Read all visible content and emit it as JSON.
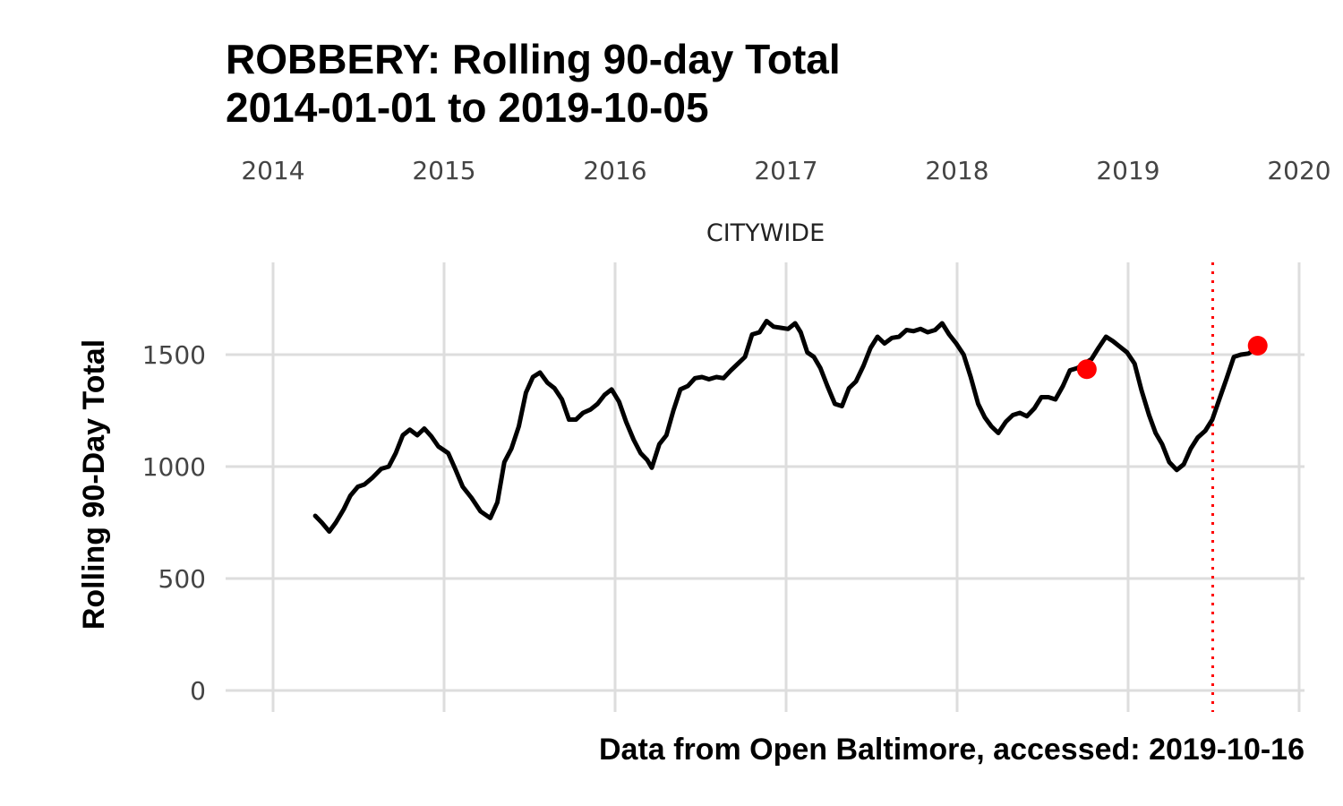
{
  "chart_data": {
    "type": "line",
    "title_line1": "ROBBERY: Rolling 90-day Total",
    "title_line2": "2014-01-01 to 2019-10-05",
    "panel_label": "CITYWIDE",
    "xlabel": "",
    "ylabel": "Rolling 90-Day Total",
    "caption": "Data from Open Baltimore, accessed: 2019-10-16",
    "x_ticks": [
      "2014",
      "2015",
      "2016",
      "2017",
      "2018",
      "2019",
      "2020"
    ],
    "y_ticks": [
      "0",
      "500",
      "1000",
      "1500"
    ],
    "xlim": [
      "2014-01-01",
      "2020-01-01"
    ],
    "ylim": [
      0,
      1900
    ],
    "grid": true,
    "series": [
      {
        "color": "#000000",
        "points": [
          [
            "2014-04-01",
            780
          ],
          [
            "2014-04-15",
            750
          ],
          [
            "2014-05-01",
            710
          ],
          [
            "2014-05-15",
            750
          ],
          [
            "2014-06-01",
            810
          ],
          [
            "2014-06-15",
            870
          ],
          [
            "2014-07-01",
            910
          ],
          [
            "2014-07-15",
            920
          ],
          [
            "2014-08-01",
            950
          ],
          [
            "2014-08-20",
            990
          ],
          [
            "2014-09-05",
            1000
          ],
          [
            "2014-09-20",
            1060
          ],
          [
            "2014-10-05",
            1140
          ],
          [
            "2014-10-20",
            1165
          ],
          [
            "2014-11-05",
            1140
          ],
          [
            "2014-11-20",
            1170
          ],
          [
            "2014-12-05",
            1135
          ],
          [
            "2014-12-20",
            1090
          ],
          [
            "2015-01-10",
            1060
          ],
          [
            "2015-01-25",
            990
          ],
          [
            "2015-02-10",
            910
          ],
          [
            "2015-03-01",
            860
          ],
          [
            "2015-03-20",
            800
          ],
          [
            "2015-04-10",
            770
          ],
          [
            "2015-04-25",
            840
          ],
          [
            "2015-05-10",
            1020
          ],
          [
            "2015-05-25",
            1080
          ],
          [
            "2015-06-10",
            1180
          ],
          [
            "2015-06-25",
            1330
          ],
          [
            "2015-07-10",
            1400
          ],
          [
            "2015-07-25",
            1420
          ],
          [
            "2015-08-10",
            1375
          ],
          [
            "2015-08-25",
            1350
          ],
          [
            "2015-09-10",
            1300
          ],
          [
            "2015-09-25",
            1210
          ],
          [
            "2015-10-10",
            1210
          ],
          [
            "2015-10-25",
            1240
          ],
          [
            "2015-11-10",
            1255
          ],
          [
            "2015-11-25",
            1280
          ],
          [
            "2015-12-10",
            1320
          ],
          [
            "2015-12-25",
            1345
          ],
          [
            "2016-01-10",
            1290
          ],
          [
            "2016-01-25",
            1200
          ],
          [
            "2016-02-10",
            1120
          ],
          [
            "2016-02-25",
            1060
          ],
          [
            "2016-03-10",
            1030
          ],
          [
            "2016-03-20",
            995
          ],
          [
            "2016-04-05",
            1100
          ],
          [
            "2016-04-20",
            1140
          ],
          [
            "2016-05-05",
            1250
          ],
          [
            "2016-05-20",
            1345
          ],
          [
            "2016-06-05",
            1360
          ],
          [
            "2016-06-20",
            1395
          ],
          [
            "2016-07-05",
            1400
          ],
          [
            "2016-07-20",
            1390
          ],
          [
            "2016-08-05",
            1400
          ],
          [
            "2016-08-20",
            1395
          ],
          [
            "2016-09-05",
            1430
          ],
          [
            "2016-09-20",
            1460
          ],
          [
            "2016-10-05",
            1490
          ],
          [
            "2016-10-20",
            1590
          ],
          [
            "2016-11-05",
            1600
          ],
          [
            "2016-11-20",
            1650
          ],
          [
            "2016-12-05",
            1625
          ],
          [
            "2016-12-20",
            1620
          ],
          [
            "2017-01-05",
            1615
          ],
          [
            "2017-01-20",
            1640
          ],
          [
            "2017-02-01",
            1600
          ],
          [
            "2017-02-15",
            1510
          ],
          [
            "2017-03-01",
            1490
          ],
          [
            "2017-03-15",
            1440
          ],
          [
            "2017-03-30",
            1360
          ],
          [
            "2017-04-15",
            1280
          ],
          [
            "2017-04-30",
            1270
          ],
          [
            "2017-05-15",
            1350
          ],
          [
            "2017-05-30",
            1380
          ],
          [
            "2017-06-15",
            1450
          ],
          [
            "2017-06-30",
            1530
          ],
          [
            "2017-07-15",
            1580
          ],
          [
            "2017-07-30",
            1550
          ],
          [
            "2017-08-15",
            1575
          ],
          [
            "2017-08-30",
            1580
          ],
          [
            "2017-09-15",
            1610
          ],
          [
            "2017-09-30",
            1605
          ],
          [
            "2017-10-15",
            1615
          ],
          [
            "2017-10-30",
            1600
          ],
          [
            "2017-11-15",
            1610
          ],
          [
            "2017-11-30",
            1640
          ],
          [
            "2017-12-15",
            1590
          ],
          [
            "2017-12-30",
            1550
          ],
          [
            "2018-01-15",
            1500
          ],
          [
            "2018-01-30",
            1400
          ],
          [
            "2018-02-15",
            1280
          ],
          [
            "2018-03-01",
            1220
          ],
          [
            "2018-03-15",
            1180
          ],
          [
            "2018-03-30",
            1150
          ],
          [
            "2018-04-15",
            1200
          ],
          [
            "2018-04-30",
            1230
          ],
          [
            "2018-05-15",
            1240
          ],
          [
            "2018-05-30",
            1225
          ],
          [
            "2018-06-15",
            1260
          ],
          [
            "2018-06-30",
            1310
          ],
          [
            "2018-07-15",
            1310
          ],
          [
            "2018-07-30",
            1300
          ],
          [
            "2018-08-15",
            1360
          ],
          [
            "2018-08-30",
            1430
          ],
          [
            "2018-09-15",
            1440
          ],
          [
            "2018-09-30",
            1460
          ],
          [
            "2018-10-15",
            1480
          ],
          [
            "2018-10-30",
            1530
          ],
          [
            "2018-11-15",
            1580
          ],
          [
            "2018-11-30",
            1560
          ],
          [
            "2018-12-15",
            1535
          ],
          [
            "2018-12-30",
            1510
          ],
          [
            "2019-01-15",
            1460
          ],
          [
            "2019-01-30",
            1340
          ],
          [
            "2019-02-15",
            1230
          ],
          [
            "2019-03-01",
            1150
          ],
          [
            "2019-03-15",
            1100
          ],
          [
            "2019-03-30",
            1020
          ],
          [
            "2019-04-15",
            985
          ],
          [
            "2019-04-30",
            1010
          ],
          [
            "2019-05-15",
            1080
          ],
          [
            "2019-05-30",
            1130
          ],
          [
            "2019-06-15",
            1160
          ],
          [
            "2019-06-30",
            1210
          ],
          [
            "2019-07-15",
            1300
          ],
          [
            "2019-07-30",
            1390
          ],
          [
            "2019-08-15",
            1490
          ],
          [
            "2019-08-30",
            1500
          ],
          [
            "2019-09-15",
            1505
          ],
          [
            "2019-09-30",
            1525
          ],
          [
            "2019-10-05",
            1540
          ]
        ]
      }
    ],
    "highlight_points": [
      {
        "x": "2018-10-05",
        "y": 1435,
        "color": "#ff0000"
      },
      {
        "x": "2019-10-05",
        "y": 1540,
        "color": "#ff0000"
      }
    ],
    "reference_line": {
      "x": "2019-07-01",
      "color": "#ff0000",
      "style": "dotted"
    }
  }
}
